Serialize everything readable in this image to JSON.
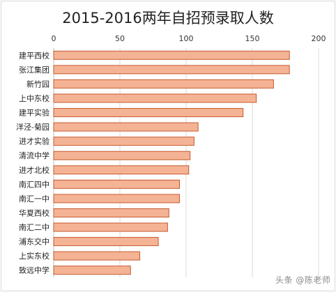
{
  "chart_data": {
    "type": "bar",
    "orientation": "horizontal",
    "title": "2015-2016两年自招预录取人数",
    "categories": [
      "建平西校",
      "张江集团",
      "新竹园",
      "上中东校",
      "建平实验",
      "洋泾-菊园",
      "进才实验",
      "清流中学",
      "进才北校",
      "南汇四中",
      "南汇一中",
      "华夏西校",
      "南汇二中",
      "浦东交中",
      "上实东校",
      "致远中学"
    ],
    "values": [
      178,
      178,
      166,
      153,
      143,
      109,
      106,
      103,
      102,
      95,
      95,
      87,
      86,
      79,
      65,
      58
    ],
    "xlim": [
      0,
      200
    ],
    "xticks": [
      0,
      50,
      100,
      150,
      200
    ],
    "grid": true,
    "bar_color": "#f4b394",
    "bar_edge_color": "#c65a2e",
    "axis_position": "top"
  },
  "watermark": "头条 @陈老师"
}
